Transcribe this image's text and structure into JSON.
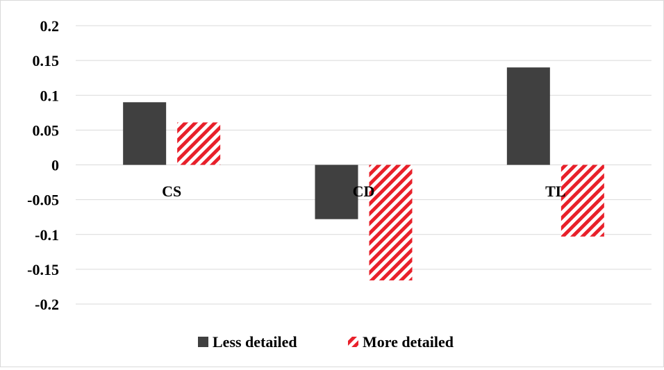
{
  "chart_data": {
    "type": "bar",
    "categories": [
      "CS",
      "CD",
      "TL"
    ],
    "series": [
      {
        "name": "Less detailed",
        "values": [
          0.09,
          -0.078,
          0.14
        ],
        "color": "#404040",
        "pattern": "solid"
      },
      {
        "name": "More detailed",
        "values": [
          0.061,
          -0.166,
          -0.103
        ],
        "color": "#e8202a",
        "pattern": "diagonal-hatch"
      }
    ],
    "ylim": [
      -0.2,
      0.2
    ],
    "yticks": [
      0.2,
      0.15,
      0.1,
      0.05,
      0,
      -0.05,
      -0.1,
      -0.15,
      -0.2
    ],
    "ytick_labels": [
      "0.2",
      "0.15",
      "0.1",
      "0.05",
      "0",
      "-0.05",
      "-0.1",
      "-0.15",
      "-0.2"
    ],
    "grid": true,
    "legend_position": "bottom",
    "title": "",
    "xlabel": "",
    "ylabel": ""
  }
}
